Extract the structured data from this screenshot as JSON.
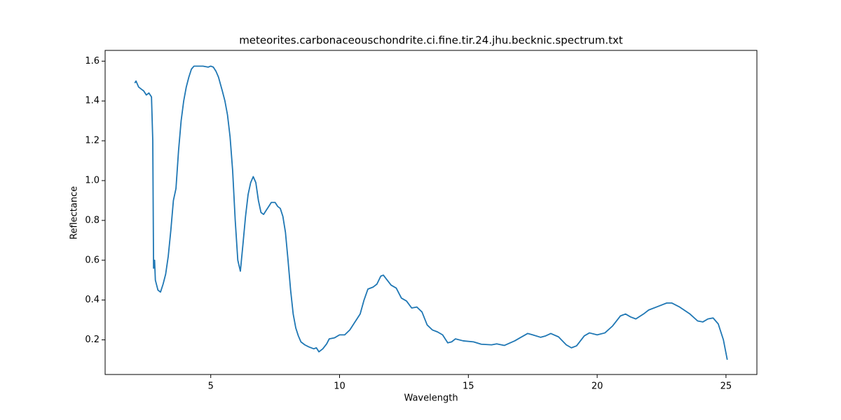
{
  "chart_data": {
    "type": "line",
    "title": "meteorites.carbonaceouschondrite.ci.fine.tir.24.jhu.becknic.spectrum.txt",
    "xlabel": "Wavelength",
    "ylabel": "Reflectance",
    "color": "#1f77b4",
    "x": [
      2.05,
      2.1,
      2.2,
      2.3,
      2.4,
      2.5,
      2.6,
      2.7,
      2.75,
      2.78,
      2.82,
      2.85,
      2.95,
      3.05,
      3.15,
      3.25,
      3.35,
      3.45,
      3.55,
      3.65,
      3.75,
      3.85,
      3.95,
      4.05,
      4.15,
      4.25,
      4.35,
      4.5,
      4.7,
      4.9,
      5.0,
      5.1,
      5.2,
      5.3,
      5.45,
      5.55,
      5.65,
      5.75,
      5.85,
      5.95,
      6.05,
      6.15,
      6.25,
      6.35,
      6.45,
      6.55,
      6.65,
      6.75,
      6.85,
      6.95,
      7.05,
      7.15,
      7.25,
      7.35,
      7.5,
      7.6,
      7.7,
      7.8,
      7.9,
      8.0,
      8.1,
      8.2,
      8.3,
      8.4,
      8.5,
      8.65,
      8.8,
      9.0,
      9.1,
      9.2,
      9.35,
      9.5,
      9.6,
      9.8,
      10.0,
      10.2,
      10.4,
      10.6,
      10.8,
      10.95,
      11.1,
      11.3,
      11.45,
      11.6,
      11.7,
      11.85,
      12.0,
      12.2,
      12.4,
      12.6,
      12.8,
      13.0,
      13.2,
      13.4,
      13.6,
      13.8,
      14.0,
      14.2,
      14.35,
      14.5,
      14.8,
      15.2,
      15.5,
      15.9,
      16.1,
      16.4,
      16.8,
      17.0,
      17.3,
      17.5,
      17.8,
      18.0,
      18.2,
      18.5,
      18.8,
      19.0,
      19.2,
      19.5,
      19.7,
      20.0,
      20.3,
      20.6,
      20.9,
      21.1,
      21.3,
      21.5,
      21.8,
      22.0,
      22.4,
      22.7,
      22.9,
      23.2,
      23.6,
      23.9,
      24.1,
      24.3,
      24.5,
      24.7,
      24.9,
      25.05
    ],
    "values": [
      1.49,
      1.5,
      1.47,
      1.46,
      1.45,
      1.43,
      1.44,
      1.42,
      1.2,
      0.56,
      0.6,
      0.5,
      0.45,
      0.44,
      0.48,
      0.53,
      0.62,
      0.75,
      0.9,
      0.96,
      1.15,
      1.3,
      1.4,
      1.47,
      1.52,
      1.56,
      1.575,
      1.575,
      1.575,
      1.57,
      1.575,
      1.57,
      1.55,
      1.52,
      1.45,
      1.4,
      1.33,
      1.22,
      1.05,
      0.8,
      0.6,
      0.545,
      0.68,
      0.82,
      0.93,
      0.99,
      1.02,
      0.99,
      0.9,
      0.84,
      0.83,
      0.85,
      0.87,
      0.89,
      0.89,
      0.87,
      0.86,
      0.82,
      0.74,
      0.6,
      0.45,
      0.33,
      0.26,
      0.22,
      0.19,
      0.175,
      0.165,
      0.155,
      0.16,
      0.14,
      0.155,
      0.18,
      0.205,
      0.21,
      0.225,
      0.225,
      0.25,
      0.29,
      0.33,
      0.4,
      0.455,
      0.465,
      0.48,
      0.52,
      0.525,
      0.5,
      0.475,
      0.46,
      0.41,
      0.395,
      0.36,
      0.365,
      0.34,
      0.275,
      0.25,
      0.24,
      0.225,
      0.185,
      0.19,
      0.205,
      0.195,
      0.19,
      0.178,
      0.175,
      0.18,
      0.172,
      0.195,
      0.21,
      0.232,
      0.225,
      0.213,
      0.22,
      0.232,
      0.215,
      0.175,
      0.16,
      0.17,
      0.22,
      0.235,
      0.225,
      0.235,
      0.27,
      0.32,
      0.33,
      0.315,
      0.305,
      0.33,
      0.35,
      0.37,
      0.385,
      0.385,
      0.365,
      0.33,
      0.295,
      0.29,
      0.305,
      0.31,
      0.28,
      0.2,
      0.1
    ],
    "xlim": [
      0.9,
      26.2
    ],
    "ylim": [
      0.026,
      1.654
    ],
    "xticks": [
      5,
      10,
      15,
      20,
      25
    ],
    "yticks": [
      0.2,
      0.4,
      0.6,
      0.8,
      {
        "value": 1,
        "label": "1.0"
      },
      1.2,
      1.4,
      1.6
    ]
  }
}
